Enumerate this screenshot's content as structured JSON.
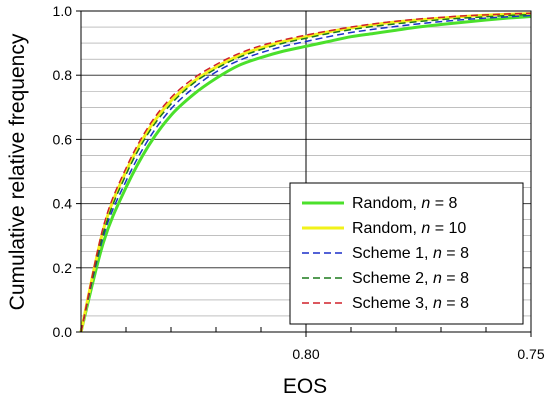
{
  "chart_data": {
    "type": "line",
    "title": "",
    "xlabel": "EOS",
    "ylabel": "Cumulative relative frequency",
    "x_axis": {
      "reversed": true,
      "range": [
        0.85,
        0.75
      ],
      "labeled_ticks": [
        "0.80",
        "0.75"
      ],
      "minor_ticks": [
        0.84,
        0.83,
        0.82,
        0.81,
        0.79,
        0.78,
        0.77,
        0.76
      ]
    },
    "y_axis": {
      "range": [
        0.0,
        1.0
      ],
      "ticks": [
        0.0,
        0.2,
        0.4,
        0.6,
        0.8,
        1.0
      ],
      "tick_labels": [
        "0.0",
        "0.2",
        "0.4",
        "0.6",
        "0.8",
        "1.0"
      ],
      "minor_step": 0.05
    },
    "grid": true,
    "legend_position": "bottom-right",
    "x": [
      0.85,
      0.845,
      0.84,
      0.835,
      0.83,
      0.825,
      0.82,
      0.815,
      0.81,
      0.805,
      0.8,
      0.795,
      0.79,
      0.785,
      0.78,
      0.775,
      0.77,
      0.765,
      0.76,
      0.755,
      0.75
    ],
    "series": [
      {
        "name": "Random, n = 8",
        "label_main": "Random, ",
        "label_n": "n",
        "label_tail": " = 8",
        "color": "#4be02b",
        "dash": "solid",
        "width": 3,
        "values": [
          0.0,
          0.28,
          0.45,
          0.58,
          0.675,
          0.74,
          0.79,
          0.83,
          0.855,
          0.875,
          0.89,
          0.905,
          0.92,
          0.93,
          0.94,
          0.95,
          0.958,
          0.965,
          0.972,
          0.978,
          0.983
        ]
      },
      {
        "name": "Random, n = 10",
        "label_main": "Random, ",
        "label_n": "n",
        "label_tail": " = 10",
        "color": "#f2f21a",
        "dash": "solid",
        "width": 3,
        "values": [
          0.0,
          0.32,
          0.5,
          0.63,
          0.72,
          0.78,
          0.825,
          0.86,
          0.885,
          0.905,
          0.92,
          0.935,
          0.947,
          0.957,
          0.966,
          0.972,
          0.978,
          0.983,
          0.987,
          0.99,
          0.992
        ]
      },
      {
        "name": "Scheme 1, n = 8",
        "label_main": "Scheme 1, ",
        "label_n": "n",
        "label_tail": " = 8",
        "color": "#1a2fc9",
        "dash": "dashed",
        "width": 1.5,
        "values": [
          0.0,
          0.3,
          0.47,
          0.6,
          0.695,
          0.76,
          0.81,
          0.845,
          0.87,
          0.89,
          0.905,
          0.92,
          0.933,
          0.943,
          0.952,
          0.96,
          0.967,
          0.973,
          0.978,
          0.982,
          0.986
        ]
      },
      {
        "name": "Scheme 2, n = 8",
        "label_main": "Scheme 2, ",
        "label_n": "n",
        "label_tail": " = 8",
        "color": "#1b7a1b",
        "dash": "dashed",
        "width": 1.5,
        "values": [
          0.0,
          0.31,
          0.49,
          0.62,
          0.71,
          0.775,
          0.82,
          0.855,
          0.88,
          0.9,
          0.915,
          0.93,
          0.942,
          0.952,
          0.96,
          0.967,
          0.973,
          0.978,
          0.982,
          0.986,
          0.989
        ]
      },
      {
        "name": "Scheme 3, n = 8",
        "label_main": "Scheme 3, ",
        "label_n": "n",
        "label_tail": " = 8",
        "color": "#d0202a",
        "dash": "dashed",
        "width": 1.5,
        "values": [
          0.0,
          0.33,
          0.51,
          0.64,
          0.73,
          0.79,
          0.833,
          0.867,
          0.892,
          0.91,
          0.925,
          0.938,
          0.95,
          0.96,
          0.968,
          0.975,
          0.98,
          0.985,
          0.988,
          0.991,
          0.993
        ]
      }
    ]
  }
}
